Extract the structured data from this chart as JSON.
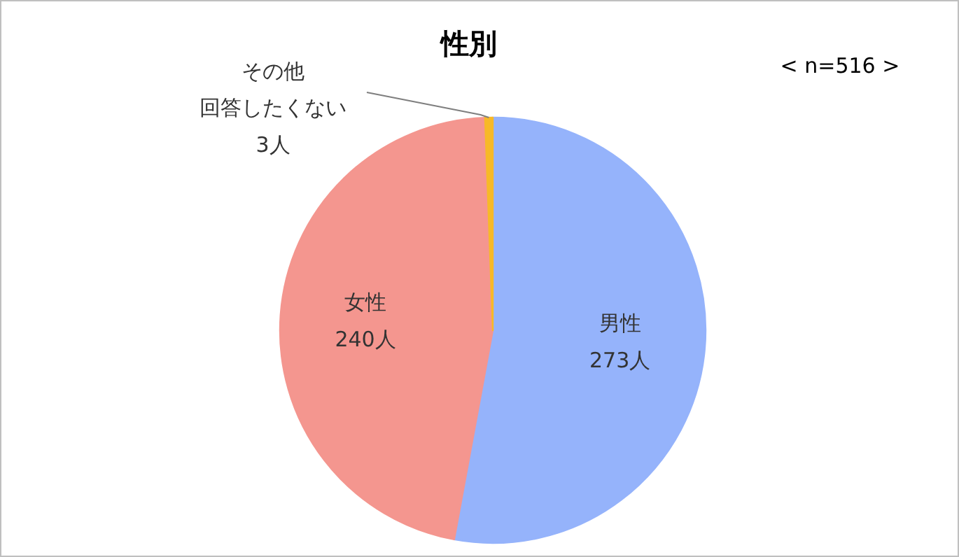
{
  "chart_data": {
    "type": "pie",
    "title": "性別",
    "annotations": [
      "< n=516 >"
    ],
    "categories": [
      "男性",
      "女性",
      "その他回答したくない"
    ],
    "values": [
      273,
      240,
      3
    ],
    "value_labels": [
      "273人",
      "240人",
      "3人"
    ],
    "colors": [
      "#95b3fb",
      "#f4968f",
      "#f7b928"
    ],
    "legend": false
  }
}
